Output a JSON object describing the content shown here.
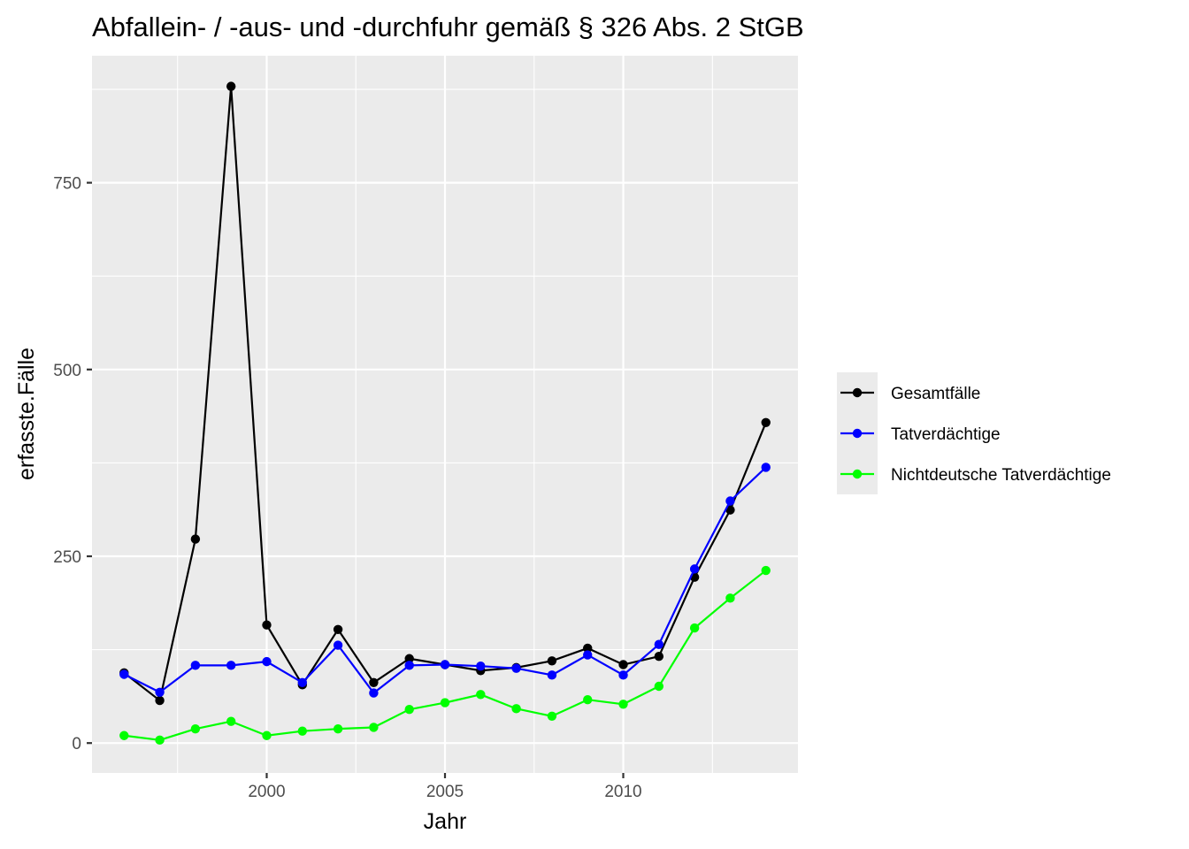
{
  "chart_data": {
    "type": "line",
    "title": "Abfallein- / -aus- und -durchfuhr gemäß § 326 Abs. 2 StGB",
    "xlabel": "Jahr",
    "ylabel": "erfasste.Fälle",
    "x": [
      1996,
      1997,
      1998,
      1999,
      2000,
      2001,
      2002,
      2003,
      2004,
      2005,
      2006,
      2007,
      2008,
      2009,
      2010,
      2011,
      2012,
      2013,
      2014
    ],
    "xlim": [
      1995.1,
      2014.9
    ],
    "ylim": [
      -40,
      920
    ],
    "x_ticks": [
      2000,
      2005,
      2010
    ],
    "x_tick_labels": [
      "2000",
      "2005",
      "2010"
    ],
    "y_ticks": [
      0,
      250,
      500,
      750
    ],
    "y_tick_labels": [
      "0",
      "250",
      "500",
      "750"
    ],
    "grid": true,
    "panel_background": "#ebebeb",
    "legend_position": "right",
    "series": [
      {
        "name": "Gesamtfälle",
        "color": "#000000",
        "values": [
          94,
          57,
          273,
          879,
          158,
          78,
          152,
          81,
          113,
          105,
          97,
          101,
          110,
          127,
          105,
          116,
          222,
          312,
          429
        ]
      },
      {
        "name": "Tatverdächtige",
        "color": "#0000ff",
        "values": [
          92,
          68,
          104,
          104,
          109,
          81,
          131,
          67,
          104,
          105,
          103,
          100,
          91,
          118,
          91,
          132,
          233,
          324,
          369
        ]
      },
      {
        "name": "Nichtdeutsche Tatverdächtige",
        "color": "#00ff00",
        "values": [
          10,
          4,
          19,
          29,
          10,
          16,
          19,
          21,
          45,
          54,
          65,
          46,
          36,
          58,
          52,
          76,
          154,
          194,
          231
        ]
      }
    ]
  }
}
